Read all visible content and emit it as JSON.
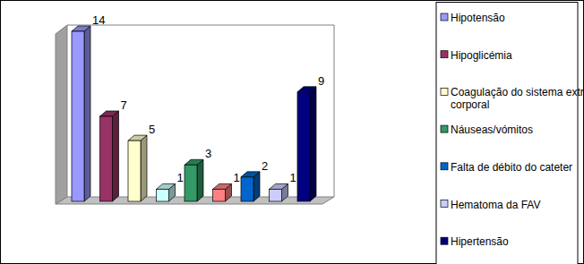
{
  "chart_data": {
    "type": "bar",
    "categories": [
      "Hipotensão",
      "Hipoglicémia",
      "Coagulação do sistema extra corporal",
      null,
      "Náuseas/vómitos",
      null,
      "Falta de débito do cateter",
      "Hematoma da FAV",
      "Hipertensão"
    ],
    "values": [
      14,
      7,
      5,
      1,
      3,
      1,
      2,
      1,
      9
    ],
    "colors": [
      "#9999ff",
      "#993366",
      "#ffffcc",
      "#ccffff",
      "#339966",
      "#ff8080",
      "#0066cc",
      "#ccccff",
      "#000080"
    ],
    "ylim": [
      0,
      14
    ],
    "data_labels": true,
    "tick_labels": false,
    "grid": false,
    "legend": "right"
  }
}
